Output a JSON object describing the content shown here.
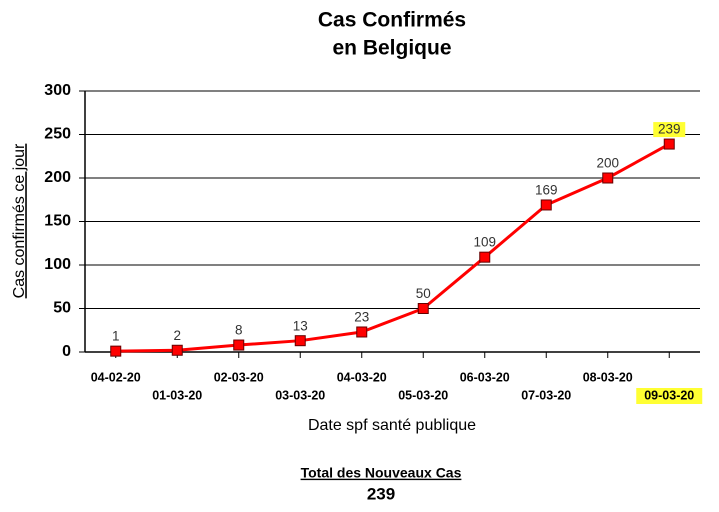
{
  "chart_data": {
    "type": "line",
    "title": [
      "Cas Confirmés",
      "en Belgique"
    ],
    "xlabel": "Date spf santé publique",
    "ylabel": "Cas confirmés ce jour",
    "categories": [
      "04-02-20",
      "01-03-20",
      "02-03-20",
      "03-03-20",
      "04-03-20",
      "05-03-20",
      "06-03-20",
      "07-03-20",
      "08-03-20",
      "09-03-20"
    ],
    "series": [
      {
        "name": "Cas confirmés",
        "color": "#ff0000",
        "values": [
          1,
          2,
          8,
          13,
          23,
          50,
          109,
          169,
          200,
          239
        ]
      }
    ],
    "ylim": [
      0,
      300
    ],
    "yticks": [
      0,
      50,
      100,
      150,
      200,
      250,
      300
    ],
    "grid": true,
    "highlight_index": 9,
    "highlight_color": "#ffff33",
    "footer": {
      "label": "Total des Nouveaux Cas",
      "value": 239
    }
  }
}
